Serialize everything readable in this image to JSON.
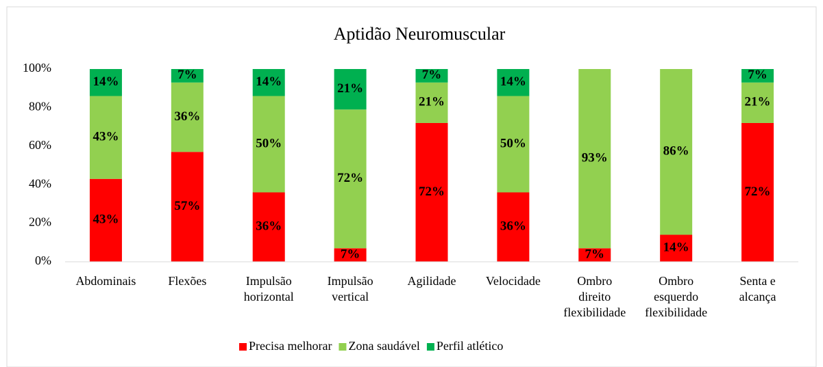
{
  "chart_data": {
    "type": "stacked_bar",
    "title": "Aptidão Neuromuscular",
    "categories": [
      "Abdominais",
      "Flexões",
      "Impulsão\nhorizontal",
      "Impulsão\nvertical",
      "Agilidade",
      "Velocidade",
      "Ombro\ndireito\nflexibilidade",
      "Ombro\nesquerdo\nflexibilidade",
      "Senta e\nalcança"
    ],
    "series": [
      {
        "name": "Precisa melhorar",
        "color": "#ff0000",
        "values": [
          43,
          57,
          36,
          7,
          72,
          36,
          7,
          14,
          72
        ],
        "value_labels": [
          "43%",
          "57%",
          "36%",
          "7%",
          "72%",
          "36%",
          "7%",
          "14%",
          "72%"
        ]
      },
      {
        "name": "Zona saudável",
        "color": "#92d050",
        "values": [
          43,
          36,
          50,
          72,
          21,
          50,
          93,
          86,
          21
        ],
        "value_labels": [
          "43%",
          "36%",
          "50%",
          "72%",
          "21%",
          "50%",
          "93%",
          "86%",
          "21%"
        ]
      },
      {
        "name": "Perfil atlético",
        "color": "#00b050",
        "values": [
          14,
          7,
          14,
          21,
          7,
          14,
          0,
          0,
          7
        ],
        "value_labels": [
          "14%",
          "7%",
          "14%",
          "21%",
          "7%",
          "14%",
          null,
          null,
          "7%"
        ]
      }
    ],
    "ylim": [
      0,
      100
    ],
    "yticks": [
      {
        "value": 0,
        "label": "0%"
      },
      {
        "value": 20,
        "label": "20%"
      },
      {
        "value": 40,
        "label": "40%"
      },
      {
        "value": 60,
        "label": "60%"
      },
      {
        "value": 80,
        "label": "80%"
      },
      {
        "value": 100,
        "label": "100%"
      }
    ],
    "grid": false,
    "legend": "bottom"
  }
}
